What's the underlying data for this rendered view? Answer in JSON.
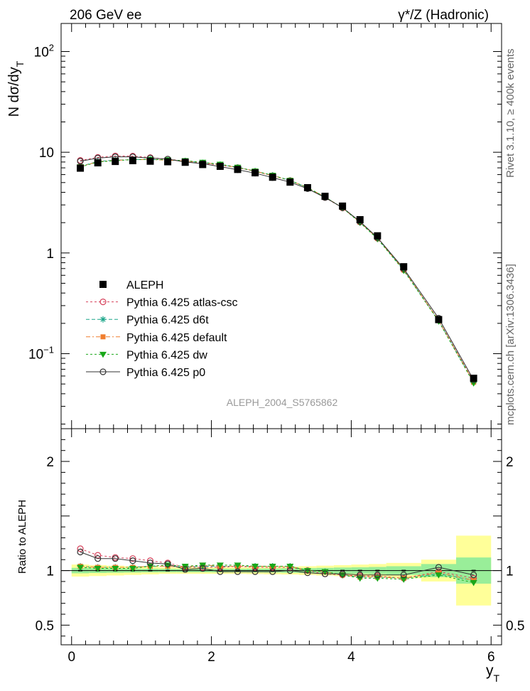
{
  "header": {
    "left_title": "206 GeV ee",
    "right_title": "γ*/Z (Hadronic)"
  },
  "side_text": {
    "rivet": "Rivet 3.1.10, ≥ 400k events",
    "mcplots": "mcplots.cern.ch [arXiv:1306.3436]"
  },
  "watermark": "ALEPH_2004_S5765862",
  "chart_data": [
    {
      "type": "scatter",
      "panel": "main",
      "yscale": "log",
      "ylabel_main": "N dσ/dy",
      "ylabel_sub": "T",
      "xlim": [
        -0.15,
        6.15
      ],
      "ylim": [
        0.018,
        190
      ],
      "yticks": [
        {
          "value": 100,
          "base": "10",
          "exp": "2"
        },
        {
          "value": 10,
          "label": "10"
        },
        {
          "value": 1,
          "label": "1"
        },
        {
          "value": 0.1,
          "base": "10",
          "exp": "−1"
        }
      ],
      "x": [
        0.125,
        0.375,
        0.625,
        0.875,
        1.125,
        1.375,
        1.625,
        1.875,
        2.125,
        2.375,
        2.625,
        2.875,
        3.125,
        3.375,
        3.625,
        3.875,
        4.125,
        4.375,
        4.75,
        5.25,
        5.75
      ],
      "legend_position": "left",
      "series": [
        {
          "name": "ALEPH",
          "key": "data",
          "color": "#000000",
          "marker": "square",
          "values": [
            6.95,
            7.85,
            8.1,
            8.25,
            8.15,
            8.05,
            7.95,
            7.55,
            7.25,
            6.75,
            6.25,
            5.65,
            5.05,
            4.45,
            3.65,
            2.92,
            2.14,
            1.48,
            0.73,
            0.218,
            0.057
          ]
        },
        {
          "name": "Pythia 6.425 atlas-csc",
          "key": "atlas",
          "color": "#d6405a",
          "marker": "circle-open",
          "dash": "3,3",
          "values": [
            8.3,
            8.9,
            9.2,
            9.15,
            8.85,
            8.55,
            8.15,
            7.8,
            7.45,
            7.05,
            6.45,
            5.85,
            5.25,
            4.45,
            3.55,
            2.8,
            2.03,
            1.4,
            0.68,
            0.215,
            0.053
          ]
        },
        {
          "name": "Pythia 6.425 d6t",
          "key": "d6t",
          "color": "#1ca68a",
          "marker": "star",
          "dash": "5,3",
          "values": [
            7.25,
            8.1,
            8.35,
            8.45,
            8.5,
            8.35,
            8.2,
            7.85,
            7.55,
            7.05,
            6.5,
            5.9,
            5.25,
            4.45,
            3.6,
            2.8,
            2.02,
            1.4,
            0.68,
            0.212,
            0.052
          ]
        },
        {
          "name": "Pythia 6.425 default",
          "key": "default",
          "color": "#f07d2e",
          "marker": "square-small",
          "dash": "6,3,2,3",
          "values": [
            7.2,
            8.05,
            8.3,
            8.45,
            8.45,
            8.35,
            8.2,
            7.9,
            7.55,
            7.05,
            6.5,
            5.85,
            5.25,
            4.45,
            3.6,
            2.8,
            2.02,
            1.4,
            0.68,
            0.213,
            0.052
          ]
        },
        {
          "name": "Pythia 6.425 dw",
          "key": "dw",
          "color": "#19a819",
          "marker": "triangle-down",
          "dash": "3,3",
          "values": [
            7.15,
            8.0,
            8.25,
            8.45,
            8.5,
            8.4,
            8.25,
            7.95,
            7.6,
            7.1,
            6.5,
            5.9,
            5.25,
            4.45,
            3.6,
            2.8,
            2.0,
            1.38,
            0.67,
            0.21,
            0.051
          ]
        },
        {
          "name": "Pythia 6.425 p0",
          "key": "p0",
          "color": "#333333",
          "marker": "circle-open",
          "values": [
            8.15,
            8.75,
            9.0,
            9.0,
            8.75,
            8.55,
            8.0,
            7.7,
            7.2,
            6.7,
            6.2,
            5.6,
            5.05,
            4.35,
            3.55,
            2.82,
            2.05,
            1.42,
            0.7,
            0.225,
            0.055
          ]
        }
      ]
    },
    {
      "type": "scatter",
      "panel": "ratio",
      "ylabel": "Ratio to ALEPH",
      "xlabel": "y",
      "xlabel_sub": "T",
      "xlim": [
        -0.15,
        6.15
      ],
      "ylim": [
        0.32,
        2.3
      ],
      "yticks": [
        {
          "value": 2,
          "label": "2"
        },
        {
          "value": 1,
          "label": "1"
        },
        {
          "value": 0.5,
          "label": "0.5"
        }
      ],
      "xticks": [
        {
          "value": 0,
          "label": "0"
        },
        {
          "value": 2,
          "label": "2"
        },
        {
          "value": 4,
          "label": "4"
        },
        {
          "value": 6,
          "label": "6"
        }
      ],
      "bins": [
        [
          0,
          0.25
        ],
        [
          0.25,
          0.5
        ],
        [
          0.5,
          0.75
        ],
        [
          0.75,
          1.0
        ],
        [
          1.0,
          1.25
        ],
        [
          1.25,
          1.5
        ],
        [
          1.5,
          1.75
        ],
        [
          1.75,
          2.0
        ],
        [
          2.0,
          2.25
        ],
        [
          2.25,
          2.5
        ],
        [
          2.5,
          2.75
        ],
        [
          2.75,
          3.0
        ],
        [
          3.0,
          3.25
        ],
        [
          3.25,
          3.5
        ],
        [
          3.5,
          3.75
        ],
        [
          3.75,
          4.0
        ],
        [
          4.0,
          4.25
        ],
        [
          4.25,
          4.5
        ],
        [
          4.5,
          5.0
        ],
        [
          5.0,
          5.5
        ],
        [
          5.5,
          6.0
        ]
      ],
      "band_stat_halfwidth": [
        0.025,
        0.022,
        0.02,
        0.018,
        0.016,
        0.015,
        0.015,
        0.015,
        0.016,
        0.016,
        0.017,
        0.018,
        0.02,
        0.022,
        0.025,
        0.028,
        0.03,
        0.033,
        0.04,
        0.06,
        0.12
      ],
      "band_total_halfwidth": [
        0.055,
        0.05,
        0.045,
        0.04,
        0.035,
        0.03,
        0.03,
        0.03,
        0.03,
        0.03,
        0.032,
        0.034,
        0.036,
        0.04,
        0.045,
        0.05,
        0.055,
        0.06,
        0.07,
        0.1,
        0.32
      ],
      "series": [
        {
          "name": "Pythia 6.425 atlas-csc",
          "key": "atlas",
          "values": [
            1.2,
            1.14,
            1.12,
            1.11,
            1.09,
            1.07,
            1.03,
            1.03,
            1.03,
            1.04,
            1.03,
            1.03,
            1.03,
            1.0,
            0.97,
            0.96,
            0.95,
            0.95,
            0.93,
            0.99,
            0.93
          ]
        },
        {
          "name": "Pythia 6.425 d6t",
          "key": "d6t",
          "values": [
            1.04,
            1.03,
            1.03,
            1.03,
            1.04,
            1.04,
            1.03,
            1.04,
            1.04,
            1.04,
            1.04,
            1.04,
            1.04,
            1.0,
            0.99,
            0.96,
            0.94,
            0.94,
            0.93,
            0.97,
            0.91
          ]
        },
        {
          "name": "Pythia 6.425 default",
          "key": "default",
          "values": [
            1.04,
            1.03,
            1.03,
            1.03,
            1.04,
            1.04,
            1.03,
            1.05,
            1.04,
            1.04,
            1.04,
            1.04,
            1.04,
            1.0,
            0.99,
            0.96,
            0.94,
            0.94,
            0.93,
            0.98,
            0.91
          ]
        },
        {
          "name": "Pythia 6.425 dw",
          "key": "dw",
          "values": [
            1.03,
            1.02,
            1.02,
            1.02,
            1.04,
            1.05,
            1.04,
            1.05,
            1.05,
            1.05,
            1.04,
            1.04,
            1.04,
            1.0,
            0.99,
            0.96,
            0.93,
            0.93,
            0.92,
            0.96,
            0.89
          ]
        },
        {
          "name": "Pythia 6.425 p0",
          "key": "p0",
          "values": [
            1.17,
            1.11,
            1.11,
            1.09,
            1.07,
            1.06,
            1.01,
            1.02,
            0.99,
            0.99,
            0.99,
            0.99,
            1.0,
            0.98,
            0.97,
            0.97,
            0.96,
            0.96,
            0.96,
            1.03,
            0.96
          ]
        }
      ]
    }
  ]
}
